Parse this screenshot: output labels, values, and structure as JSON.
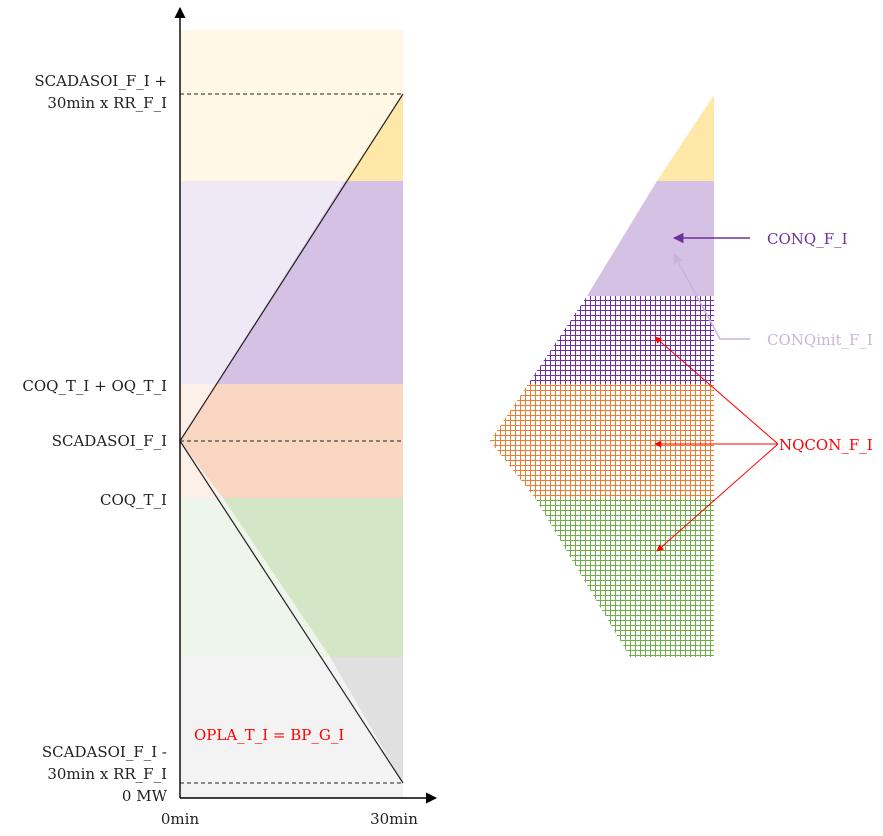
{
  "y_axis_labels": {
    "top_line1": "SCADASOI_F_I +",
    "top_line2": "30min x RR_F_I",
    "coq_plus_oq": "COQ_T_I + OQ_T_I",
    "scadasoi": "SCADASOI_F_I",
    "coq": "COQ_T_I",
    "bottom_line1": "SCADASOI_F_I -",
    "bottom_line2": "30min x RR_F_I",
    "zero": "0 MW"
  },
  "x_axis_labels": {
    "start": "0min",
    "end": "30min"
  },
  "inner_label": "OPLA_T_I = BP_G_I",
  "annotations": {
    "conq": "CONQ_F_I",
    "conqinit": "CONQinit_F_I",
    "nqcon": "NQCON_F_I"
  },
  "colors": {
    "yellow_light": "#fff8e6",
    "yellow": "#ffe7a8",
    "purple_light": "#efe9f5",
    "purple": "#d4c1e3",
    "orange": "#f9d6c2",
    "green_light": "#eef5ea",
    "green": "#d4e6c6",
    "grey_light": "#f3f3f3",
    "grey": "#e0e0e0",
    "purple_grid": "#7030a0",
    "orange_grid": "#ed7d31",
    "green_grid": "#70ad47",
    "red": "#ff0000",
    "purple_arrow": "#7030a0",
    "lilac_arrow": "#c9b4dd"
  }
}
